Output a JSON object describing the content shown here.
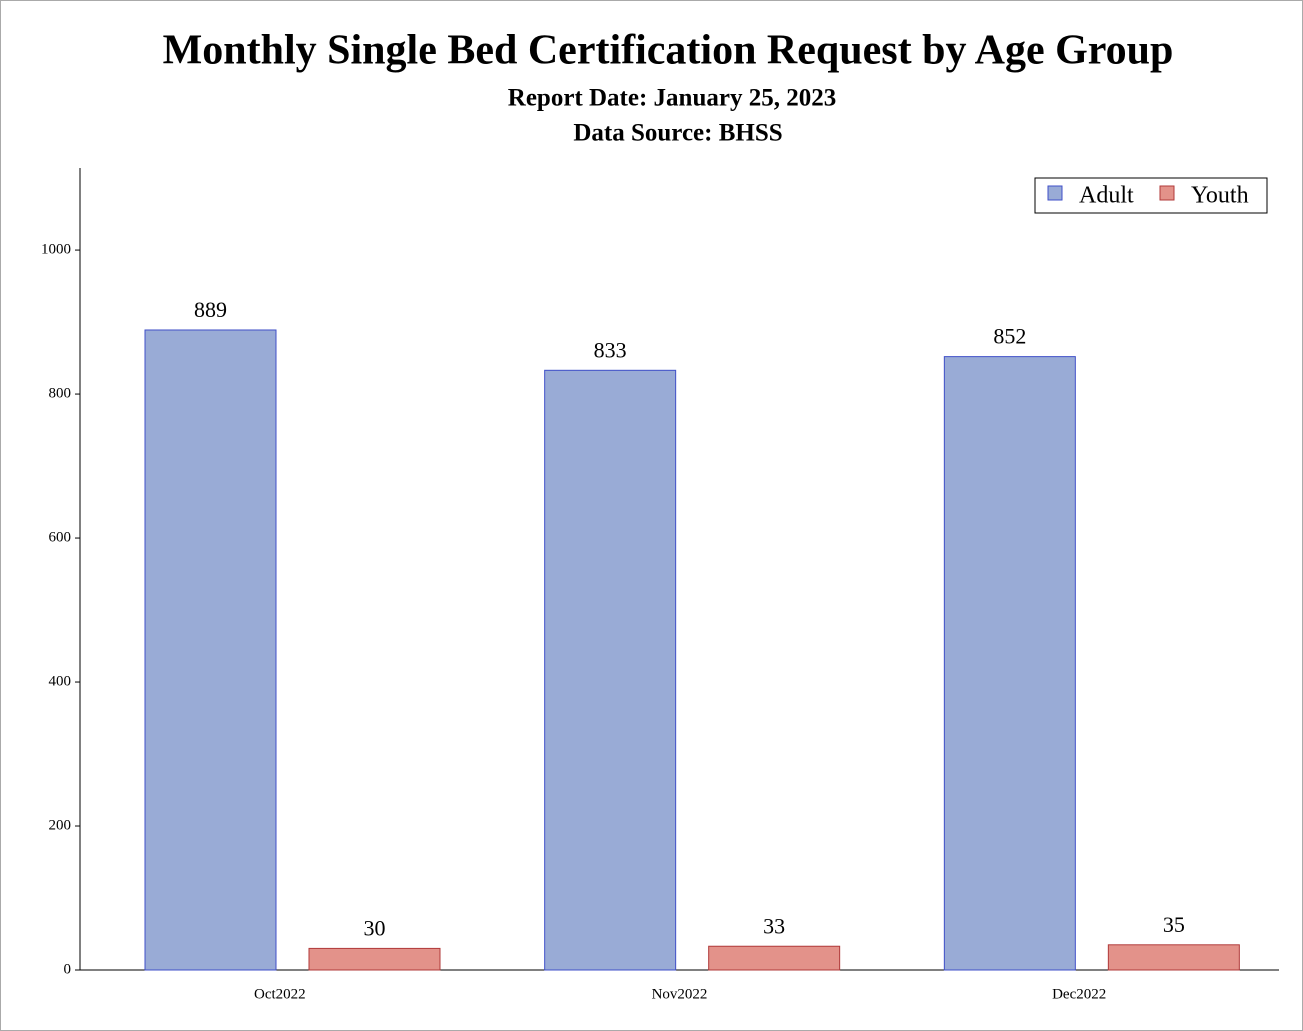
{
  "chart_data": {
    "type": "bar",
    "title": "Monthly Single Bed Certification Request by Age Group",
    "subtitles": [
      "Report Date: January 25, 2023",
      "Data Source: BHSS"
    ],
    "categories": [
      "Oct2022",
      "Nov2022",
      "Dec2022"
    ],
    "series": [
      {
        "name": "Adult",
        "color": "#99abd6",
        "values": [
          889,
          833,
          852
        ]
      },
      {
        "name": "Youth",
        "color": "#e3928a",
        "values": [
          30,
          33,
          35
        ]
      }
    ],
    "ylim": [
      0,
      1114
    ],
    "yticks": [
      0,
      200,
      400,
      600,
      800,
      1000
    ],
    "grid": false,
    "legend": "top-right"
  }
}
